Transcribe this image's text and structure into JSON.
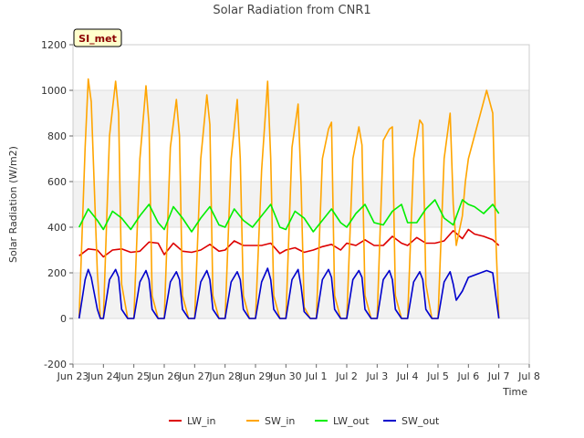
{
  "chart_data": {
    "type": "line",
    "title": "Solar Radiation from CNR1",
    "xlabel": "Time",
    "ylabel": "Solar Radiation (W/m2)",
    "ylim": [
      -200,
      1200
    ],
    "xlim_days": [
      0,
      15
    ],
    "y_ticks": [
      -200,
      0,
      200,
      400,
      600,
      800,
      1000,
      1200
    ],
    "x_tick_labels": [
      "Jun 23",
      "Jun 24",
      "Jun 25",
      "Jun 26",
      "Jun 27",
      "Jun 28",
      "Jun 29",
      "Jun 30",
      "Jul 1",
      "Jul 2",
      "Jul 3",
      "Jul 4",
      "Jul 5",
      "Jul 6",
      "Jul 7",
      "Jul 8"
    ],
    "x_tick_positions": [
      0,
      1,
      2,
      3,
      4,
      5,
      6,
      7,
      8,
      9,
      10,
      11,
      12,
      13,
      14,
      15
    ],
    "grid": true,
    "legend_position": "bottom",
    "annotation": "SI_met",
    "series": [
      {
        "name": "LW_in",
        "color": "#dd0000",
        "x": [
          0.2,
          0.5,
          0.8,
          1.0,
          1.3,
          1.6,
          1.9,
          2.2,
          2.5,
          2.8,
          3.0,
          3.3,
          3.6,
          3.9,
          4.2,
          4.5,
          4.8,
          5.0,
          5.3,
          5.6,
          5.9,
          6.2,
          6.5,
          6.8,
          7.0,
          7.3,
          7.6,
          7.9,
          8.2,
          8.5,
          8.8,
          9.0,
          9.3,
          9.6,
          9.9,
          10.2,
          10.5,
          10.8,
          11.0,
          11.3,
          11.6,
          11.9,
          12.2,
          12.5,
          12.8,
          13.0,
          13.2,
          13.5,
          13.8,
          14.0
        ],
        "y": [
          275,
          305,
          300,
          270,
          300,
          305,
          290,
          295,
          335,
          330,
          280,
          330,
          295,
          290,
          300,
          325,
          295,
          300,
          340,
          320,
          320,
          320,
          330,
          285,
          300,
          310,
          290,
          300,
          315,
          325,
          300,
          330,
          320,
          345,
          320,
          320,
          360,
          330,
          320,
          355,
          330,
          330,
          340,
          385,
          350,
          390,
          370,
          360,
          345,
          320
        ]
      },
      {
        "name": "SW_in",
        "color": "#ffa500",
        "x": [
          0.2,
          0.4,
          0.5,
          0.6,
          0.8,
          0.9,
          1.0,
          1.2,
          1.4,
          1.5,
          1.6,
          1.8,
          1.9,
          2.0,
          2.2,
          2.4,
          2.5,
          2.6,
          2.8,
          2.9,
          3.0,
          3.2,
          3.4,
          3.5,
          3.6,
          3.8,
          3.9,
          4.0,
          4.2,
          4.4,
          4.5,
          4.6,
          4.8,
          4.9,
          5.0,
          5.2,
          5.4,
          5.5,
          5.6,
          5.8,
          5.9,
          6.0,
          6.2,
          6.4,
          6.5,
          6.6,
          6.8,
          6.9,
          7.0,
          7.2,
          7.4,
          7.5,
          7.6,
          7.8,
          7.9,
          8.0,
          8.2,
          8.4,
          8.5,
          8.6,
          8.8,
          8.9,
          9.0,
          9.2,
          9.4,
          9.5,
          9.6,
          9.8,
          9.9,
          10.0,
          10.2,
          10.4,
          10.5,
          10.6,
          10.8,
          10.9,
          11.0,
          11.2,
          11.4,
          11.5,
          11.6,
          11.8,
          11.9,
          12.0,
          12.2,
          12.4,
          12.5,
          12.6,
          12.8,
          12.9,
          13.0,
          13.6,
          13.8,
          13.9,
          14.0
        ],
        "y": [
          0,
          750,
          1050,
          950,
          200,
          0,
          0,
          800,
          1040,
          900,
          150,
          0,
          0,
          0,
          700,
          1020,
          850,
          100,
          0,
          0,
          0,
          750,
          960,
          800,
          100,
          0,
          0,
          0,
          700,
          980,
          850,
          100,
          0,
          0,
          0,
          700,
          960,
          700,
          100,
          0,
          0,
          0,
          650,
          1040,
          700,
          100,
          0,
          0,
          0,
          750,
          940,
          580,
          50,
          0,
          0,
          0,
          700,
          830,
          860,
          100,
          0,
          0,
          0,
          700,
          840,
          760,
          100,
          0,
          0,
          0,
          780,
          830,
          840,
          100,
          0,
          0,
          0,
          700,
          870,
          850,
          150,
          0,
          0,
          0,
          700,
          900,
          500,
          320,
          450,
          600,
          700,
          1000,
          900,
          360,
          0
        ]
      },
      {
        "name": "LW_out",
        "color": "#00ee00",
        "x": [
          0.2,
          0.5,
          0.8,
          1.0,
          1.3,
          1.6,
          1.9,
          2.2,
          2.5,
          2.8,
          3.0,
          3.3,
          3.6,
          3.9,
          4.2,
          4.5,
          4.8,
          5.0,
          5.3,
          5.6,
          5.9,
          6.2,
          6.5,
          6.8,
          7.0,
          7.3,
          7.6,
          7.9,
          8.2,
          8.5,
          8.8,
          9.0,
          9.3,
          9.6,
          9.9,
          10.2,
          10.5,
          10.8,
          11.0,
          11.3,
          11.6,
          11.9,
          12.2,
          12.5,
          12.8,
          13.0,
          13.2,
          13.5,
          13.8,
          14.0
        ],
        "y": [
          400,
          480,
          430,
          390,
          470,
          440,
          390,
          450,
          500,
          420,
          390,
          490,
          440,
          380,
          440,
          490,
          410,
          400,
          480,
          430,
          400,
          450,
          500,
          400,
          390,
          470,
          440,
          380,
          430,
          480,
          420,
          400,
          460,
          500,
          420,
          410,
          470,
          500,
          420,
          420,
          480,
          520,
          440,
          410,
          520,
          500,
          490,
          460,
          500,
          460
        ]
      },
      {
        "name": "SW_out",
        "color": "#0000cc",
        "x": [
          0.2,
          0.4,
          0.5,
          0.6,
          0.8,
          0.9,
          1.0,
          1.2,
          1.4,
          1.5,
          1.6,
          1.8,
          1.9,
          2.0,
          2.2,
          2.4,
          2.5,
          2.6,
          2.8,
          2.9,
          3.0,
          3.2,
          3.4,
          3.5,
          3.6,
          3.8,
          3.9,
          4.0,
          4.2,
          4.4,
          4.5,
          4.6,
          4.8,
          4.9,
          5.0,
          5.2,
          5.4,
          5.5,
          5.6,
          5.8,
          5.9,
          6.0,
          6.2,
          6.4,
          6.5,
          6.6,
          6.8,
          6.9,
          7.0,
          7.2,
          7.4,
          7.5,
          7.6,
          7.8,
          7.9,
          8.0,
          8.2,
          8.4,
          8.5,
          8.6,
          8.8,
          8.9,
          9.0,
          9.2,
          9.4,
          9.5,
          9.6,
          9.8,
          9.9,
          10.0,
          10.2,
          10.4,
          10.5,
          10.6,
          10.8,
          10.9,
          11.0,
          11.2,
          11.4,
          11.5,
          11.6,
          11.8,
          11.9,
          12.0,
          12.2,
          12.4,
          12.5,
          12.6,
          12.8,
          12.9,
          13.0,
          13.6,
          13.8,
          13.9,
          14.0
        ],
        "y": [
          0,
          170,
          215,
          180,
          40,
          0,
          0,
          170,
          215,
          180,
          40,
          0,
          0,
          0,
          160,
          210,
          170,
          40,
          0,
          0,
          0,
          160,
          205,
          170,
          40,
          0,
          0,
          0,
          160,
          210,
          170,
          40,
          0,
          0,
          0,
          160,
          205,
          170,
          40,
          0,
          0,
          0,
          160,
          220,
          170,
          40,
          0,
          0,
          0,
          170,
          215,
          140,
          30,
          0,
          0,
          0,
          170,
          215,
          180,
          40,
          0,
          0,
          0,
          170,
          210,
          180,
          40,
          0,
          0,
          0,
          170,
          210,
          170,
          40,
          0,
          0,
          0,
          160,
          205,
          170,
          40,
          0,
          0,
          0,
          160,
          205,
          150,
          80,
          120,
          150,
          180,
          210,
          200,
          100,
          0
        ]
      }
    ]
  }
}
